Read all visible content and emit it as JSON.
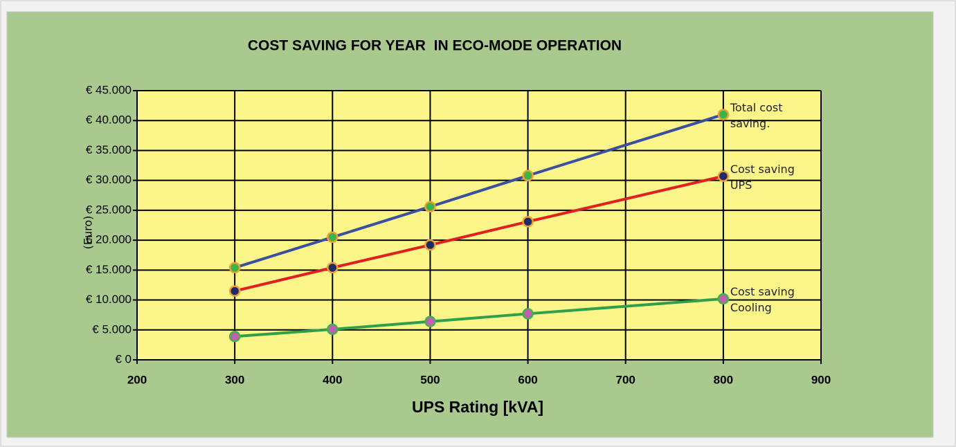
{
  "chart_data": {
    "type": "line",
    "title": "COST SAVING FOR YEAR  IN ECO-MODE OPERATION",
    "xlabel": "UPS Rating [kVA]",
    "ylabel": "(Euro)",
    "x": [
      300,
      400,
      500,
      600,
      800
    ],
    "series": [
      {
        "name": "Total cost saving.",
        "color": "#3a4fa0",
        "marker_color": "#3cb44a",
        "marker_edge": "#f0a030",
        "values": [
          15400,
          20500,
          25600,
          30800,
          41000
        ]
      },
      {
        "name": "Cost saving UPS",
        "color": "#e02020",
        "marker_color": "#1f2a6e",
        "marker_edge": "#f0a030",
        "values": [
          11500,
          15400,
          19200,
          23100,
          30700
        ]
      },
      {
        "name": "Cost saving Cooling",
        "color": "#2fa04a",
        "marker_color": "#c060b0",
        "marker_edge": "#3cb44a",
        "values": [
          3900,
          5100,
          6400,
          7700,
          10200
        ]
      }
    ],
    "xlim": [
      200,
      900
    ],
    "xticks": [
      200,
      300,
      400,
      500,
      600,
      700,
      800,
      900
    ],
    "ylim": [
      0,
      45000
    ],
    "yticks": [
      {
        "value": 0,
        "label": "€ 0"
      },
      {
        "value": 5000,
        "label": "€ 5.000"
      },
      {
        "value": 10000,
        "label": "€ 10.000"
      },
      {
        "value": 15000,
        "label": "€ 15.000"
      },
      {
        "value": 20000,
        "label": "€ 20.000"
      },
      {
        "value": 25000,
        "label": "€ 25.000"
      },
      {
        "value": 30000,
        "label": "€ 30.000"
      },
      {
        "value": 35000,
        "label": "€ 35.000"
      },
      {
        "value": 40000,
        "label": "€ 40.000"
      },
      {
        "value": 45000,
        "label": "€ 45.000"
      }
    ],
    "grid": true
  }
}
